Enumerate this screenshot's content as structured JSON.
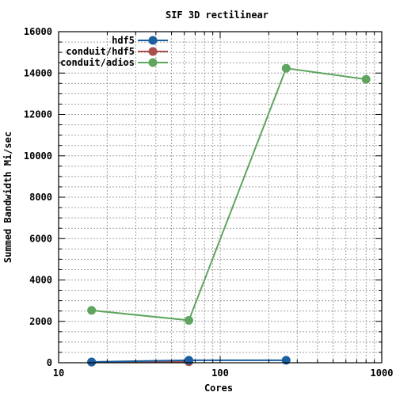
{
  "chart_data": {
    "type": "line",
    "title": "SIF 3D rectilinear",
    "xlabel": "Cores",
    "ylabel": "Summed Bandwidth Mi/sec",
    "xscale": "log",
    "xlim": [
      10,
      1000
    ],
    "ylim": [
      0,
      16000
    ],
    "grid": true,
    "legend_position": "top-right",
    "x_ticks": [
      10,
      100,
      1000
    ],
    "x_tick_labels": [
      "10",
      "100",
      "1000"
    ],
    "y_ticks": [
      0,
      2000,
      4000,
      6000,
      8000,
      10000,
      12000,
      14000,
      16000
    ],
    "y_tick_labels": [
      "0",
      "2000",
      "4000",
      "6000",
      "8000",
      "10000",
      "12000",
      "14000",
      "16000"
    ],
    "series": [
      {
        "name": "hdf5",
        "color": "#1a5fa0",
        "x": [
          16,
          64,
          256
        ],
        "y": [
          40,
          120,
          120
        ]
      },
      {
        "name": "conduit/hdf5",
        "color": "#a9504c",
        "x": [
          16,
          64
        ],
        "y": [
          30,
          50
        ]
      },
      {
        "name": "conduit/adios",
        "color": "#5fa55f",
        "x": [
          16,
          64,
          256,
          800
        ],
        "y": [
          2530,
          2050,
          14230,
          13700
        ]
      }
    ]
  }
}
